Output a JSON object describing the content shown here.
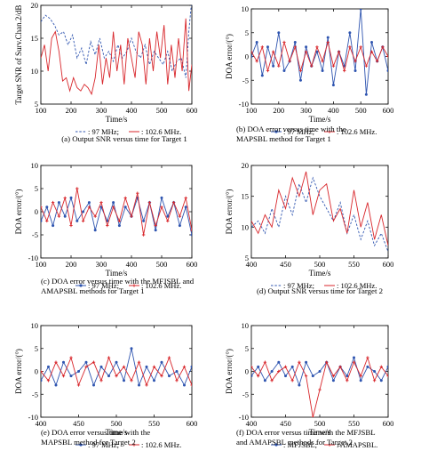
{
  "panels": [
    {
      "id": "a",
      "caption_lines": [
        "(a) Output SNR versus time for Target 1"
      ],
      "xlabel": "Time/s",
      "ylabel": "Target SNR of Surv.Chan.2/dB",
      "xlim": [
        100,
        600
      ],
      "ylim": [
        5,
        20
      ],
      "xticks": [
        "100",
        "200",
        "300",
        "400",
        "500",
        "600"
      ],
      "yticks": [
        "5",
        "10",
        "15",
        "20"
      ],
      "legend": [
        ": 97 MHz;",
        ": 102.6 MHz."
      ]
    },
    {
      "id": "b",
      "caption_lines": [
        "(b) DOA error versus time with the",
        "MAPSBL method for Target 1"
      ],
      "xlabel": "Time/s",
      "ylabel": "DOA error/(°)",
      "xlim": [
        100,
        600
      ],
      "ylim": [
        -10,
        10
      ],
      "xticks": [
        "100",
        "200",
        "300",
        "400",
        "500",
        "600"
      ],
      "yticks": [
        "-10",
        "-5",
        "0",
        "5",
        "10"
      ],
      "legend": [
        ": 97 MHz;",
        ": 102.6 MHz."
      ]
    },
    {
      "id": "c",
      "caption_lines": [
        "(c) DOA error versus time with the MFJSBL and",
        "AMAPSBL methods for Target 1"
      ],
      "xlabel": "Time/s",
      "ylabel": "DOA error/(°)",
      "xlim": [
        100,
        600
      ],
      "ylim": [
        -10,
        10
      ],
      "xticks": [
        "100",
        "200",
        "300",
        "400",
        "500",
        "600"
      ],
      "yticks": [
        "-10",
        "-5",
        "0",
        "5",
        "10"
      ],
      "legend": [
        ": 97 MHz;",
        ": 102.6 MHz."
      ]
    },
    {
      "id": "d",
      "caption_lines": [
        "(d) Output SNR versus time for Target 2"
      ],
      "xlabel": "Time/s",
      "ylabel": "DOA error/(°)",
      "xlim": [
        400,
        600
      ],
      "ylim": [
        5,
        20
      ],
      "xticks": [
        "400",
        "450",
        "500",
        "550",
        "600"
      ],
      "yticks": [
        "5",
        "10",
        "15",
        "20"
      ],
      "legend": [
        ": 97 MHz;",
        ": 102.6 MHz."
      ]
    },
    {
      "id": "e",
      "caption_lines": [
        "(e) DOA error versus time with the",
        "MAPSBL method for Target 2"
      ],
      "xlabel": "Time/s",
      "ylabel": "DOA error/(°)",
      "xlim": [
        400,
        600
      ],
      "ylim": [
        -10,
        10
      ],
      "xticks": [
        "400",
        "450",
        "500",
        "550",
        "600"
      ],
      "yticks": [
        "-10",
        "-5",
        "0",
        "5",
        "10"
      ],
      "legend": [
        ": 97 MHz;",
        ": 102.6 MHz."
      ]
    },
    {
      "id": "f",
      "caption_lines": [
        "(f) DOA error versus time with the MFJSBL",
        "and AMAPSBL methods for Target 2"
      ],
      "xlabel": "Time/s",
      "ylabel": "DOA error/(°)",
      "xlim": [
        400,
        600
      ],
      "ylim": [
        -10,
        10
      ],
      "xticks": [
        "400",
        "450",
        "500",
        "550",
        "600"
      ],
      "yticks": [
        "-10",
        "-5",
        "0",
        "5",
        "10"
      ],
      "legend": [
        ": MFJSBL;",
        ": AMAPSBL."
      ]
    }
  ],
  "colors": {
    "blue": "#2f55b0",
    "red": "#d8262b"
  },
  "chart_data": [
    {
      "type": "line",
      "panel": "a",
      "ylim": [
        5,
        20
      ],
      "xlim": [
        100,
        600
      ],
      "series": [
        {
          "name": "97 MHz",
          "style": "dashed",
          "color": "blue",
          "x": [
            100,
            115,
            130,
            145,
            160,
            175,
            190,
            205,
            220,
            235,
            250,
            265,
            280,
            295,
            310,
            325,
            340,
            355,
            370,
            385,
            400,
            415,
            430,
            445,
            460,
            475,
            490,
            505,
            520,
            535,
            550,
            565,
            580,
            590,
            600
          ],
          "y": [
            17.5,
            18.5,
            18,
            17,
            15.5,
            16,
            14,
            15.5,
            12,
            13.5,
            11,
            14.5,
            12.5,
            15,
            12,
            13,
            11.5,
            14,
            12,
            13,
            15,
            13,
            12,
            14,
            11,
            13,
            12,
            11,
            13,
            10,
            11.5,
            12,
            9,
            16,
            21
          ]
        },
        {
          "name": "102.6 MHz",
          "style": "solid",
          "color": "red",
          "x": [
            100,
            112,
            124,
            136,
            148,
            160,
            172,
            184,
            196,
            208,
            220,
            232,
            244,
            256,
            268,
            280,
            292,
            304,
            316,
            328,
            340,
            352,
            364,
            376,
            388,
            400,
            412,
            424,
            436,
            448,
            460,
            472,
            484,
            496,
            508,
            520,
            532,
            544,
            556,
            568,
            580,
            590,
            600
          ],
          "y": [
            12,
            14,
            10,
            15,
            16,
            13,
            8.5,
            9,
            7,
            9,
            7.5,
            7,
            8,
            7.5,
            6.5,
            9,
            14,
            8,
            12,
            9,
            16,
            10,
            14,
            8,
            15,
            12,
            9,
            16,
            14,
            8,
            15,
            10,
            16,
            12,
            17,
            8,
            14,
            9,
            15,
            10,
            18,
            7,
            11
          ]
        }
      ]
    },
    {
      "type": "line",
      "panel": "b",
      "ylim": [
        -10,
        10
      ],
      "xlim": [
        100,
        600
      ],
      "series": [
        {
          "name": "97 MHz",
          "style": "solid-markers",
          "color": "blue",
          "x": [
            100,
            120,
            140,
            160,
            180,
            200,
            220,
            240,
            260,
            280,
            300,
            320,
            340,
            360,
            380,
            400,
            420,
            440,
            460,
            480,
            500,
            520,
            540,
            560,
            580,
            600
          ],
          "y": [
            0,
            3,
            -4,
            2,
            -2,
            5,
            -3,
            -1,
            3,
            -5,
            2,
            -2,
            1,
            -3,
            4,
            -6,
            1,
            -2,
            5,
            -3,
            10,
            -8,
            3,
            -1,
            2,
            -3
          ]
        },
        {
          "name": "102.6 MHz",
          "style": "solid-markers",
          "color": "red",
          "x": [
            100,
            120,
            140,
            160,
            180,
            200,
            220,
            240,
            260,
            280,
            300,
            320,
            340,
            360,
            380,
            400,
            420,
            440,
            460,
            480,
            500,
            520,
            540,
            560,
            580,
            600
          ],
          "y": [
            1,
            -1,
            2,
            -3,
            1,
            -2,
            3,
            -1,
            2,
            -3,
            1,
            -2,
            2,
            -1,
            3,
            -2,
            1,
            -3,
            2,
            -1,
            2,
            -2,
            1,
            -1,
            2,
            0
          ]
        }
      ]
    },
    {
      "type": "line",
      "panel": "c",
      "ylim": [
        -10,
        10
      ],
      "xlim": [
        100,
        600
      ],
      "series": [
        {
          "name": "97 MHz",
          "style": "solid-markers",
          "color": "blue",
          "x": [
            100,
            120,
            140,
            160,
            180,
            200,
            220,
            240,
            260,
            280,
            300,
            320,
            340,
            360,
            380,
            400,
            420,
            440,
            460,
            480,
            500,
            520,
            540,
            560,
            580,
            600
          ],
          "y": [
            -2,
            1,
            -3,
            2,
            -1,
            3,
            -2,
            0,
            2,
            -4,
            1,
            -2,
            2,
            -3,
            1,
            -1,
            3,
            -2,
            2,
            -4,
            3,
            -1,
            2,
            -3,
            1,
            -5
          ]
        },
        {
          "name": "102.6 MHz",
          "style": "solid-markers",
          "color": "red",
          "x": [
            100,
            120,
            140,
            160,
            180,
            200,
            220,
            240,
            260,
            280,
            300,
            320,
            340,
            360,
            380,
            400,
            420,
            440,
            460,
            480,
            500,
            520,
            540,
            560,
            580,
            600
          ],
          "y": [
            1,
            -2,
            2,
            -1,
            3,
            -3,
            5,
            -2,
            1,
            -1,
            2,
            -3,
            1,
            -2,
            3,
            -1,
            4,
            -5,
            2,
            -3,
            1,
            -2,
            2,
            -1,
            3,
            -4
          ]
        }
      ]
    },
    {
      "type": "line",
      "panel": "d",
      "ylim": [
        5,
        20
      ],
      "xlim": [
        400,
        600
      ],
      "series": [
        {
          "name": "97 MHz",
          "style": "dashed",
          "color": "blue",
          "x": [
            400,
            410,
            420,
            430,
            440,
            450,
            460,
            470,
            480,
            490,
            500,
            510,
            520,
            530,
            540,
            550,
            560,
            570,
            580,
            590,
            600
          ],
          "y": [
            10,
            11,
            9,
            13,
            10,
            15,
            12,
            17,
            14,
            18,
            15,
            13,
            11,
            14,
            9,
            12,
            8,
            11,
            7,
            9,
            6
          ]
        },
        {
          "name": "102.6 MHz",
          "style": "solid",
          "color": "red",
          "x": [
            400,
            410,
            420,
            430,
            440,
            450,
            460,
            470,
            480,
            490,
            500,
            510,
            520,
            530,
            540,
            550,
            560,
            570,
            580,
            590,
            600
          ],
          "y": [
            11,
            9,
            12,
            10,
            16,
            13,
            18,
            15,
            19,
            12,
            16,
            17,
            11,
            13,
            9,
            16,
            10,
            14,
            8,
            12,
            7
          ]
        }
      ]
    },
    {
      "type": "line",
      "panel": "e",
      "ylim": [
        -10,
        10
      ],
      "xlim": [
        400,
        600
      ],
      "series": [
        {
          "name": "97 MHz",
          "style": "solid-markers",
          "color": "blue",
          "x": [
            400,
            410,
            420,
            430,
            440,
            450,
            460,
            470,
            480,
            490,
            500,
            510,
            520,
            530,
            540,
            550,
            560,
            570,
            580,
            590,
            600
          ],
          "y": [
            -2,
            1,
            -3,
            2,
            -1,
            0,
            2,
            -3,
            1,
            -1,
            2,
            -2,
            5,
            -3,
            1,
            -2,
            2,
            -1,
            0,
            -3,
            1
          ]
        },
        {
          "name": "102.6 MHz",
          "style": "solid-markers",
          "color": "red",
          "x": [
            400,
            410,
            420,
            430,
            440,
            450,
            460,
            470,
            480,
            490,
            500,
            510,
            520,
            530,
            540,
            550,
            560,
            570,
            580,
            590,
            600
          ],
          "y": [
            0,
            -2,
            2,
            -1,
            3,
            -3,
            1,
            2,
            -2,
            3,
            -1,
            1,
            -2,
            2,
            -3,
            1,
            -1,
            3,
            -2,
            1,
            -3
          ]
        }
      ]
    },
    {
      "type": "line",
      "panel": "f",
      "ylim": [
        -10,
        10
      ],
      "xlim": [
        400,
        600
      ],
      "series": [
        {
          "name": "MFJSBL",
          "style": "solid-markers",
          "color": "blue",
          "x": [
            400,
            410,
            420,
            430,
            440,
            450,
            460,
            470,
            480,
            490,
            500,
            510,
            520,
            530,
            540,
            550,
            560,
            570,
            580,
            590,
            600
          ],
          "y": [
            -1,
            1,
            -2,
            0,
            2,
            -1,
            1,
            -3,
            2,
            -1,
            0,
            2,
            -2,
            1,
            -1,
            3,
            -2,
            1,
            0,
            -2,
            1
          ]
        },
        {
          "name": "AMAPSBL",
          "style": "solid-markers",
          "color": "red",
          "x": [
            400,
            410,
            420,
            430,
            440,
            450,
            460,
            470,
            480,
            490,
            500,
            510,
            520,
            530,
            540,
            550,
            560,
            570,
            580,
            590,
            600
          ],
          "y": [
            1,
            -1,
            2,
            -2,
            0,
            1,
            -2,
            2,
            -1,
            -10,
            -4,
            2,
            -1,
            1,
            -2,
            2,
            -1,
            3,
            -2,
            1,
            -1
          ]
        }
      ]
    }
  ]
}
